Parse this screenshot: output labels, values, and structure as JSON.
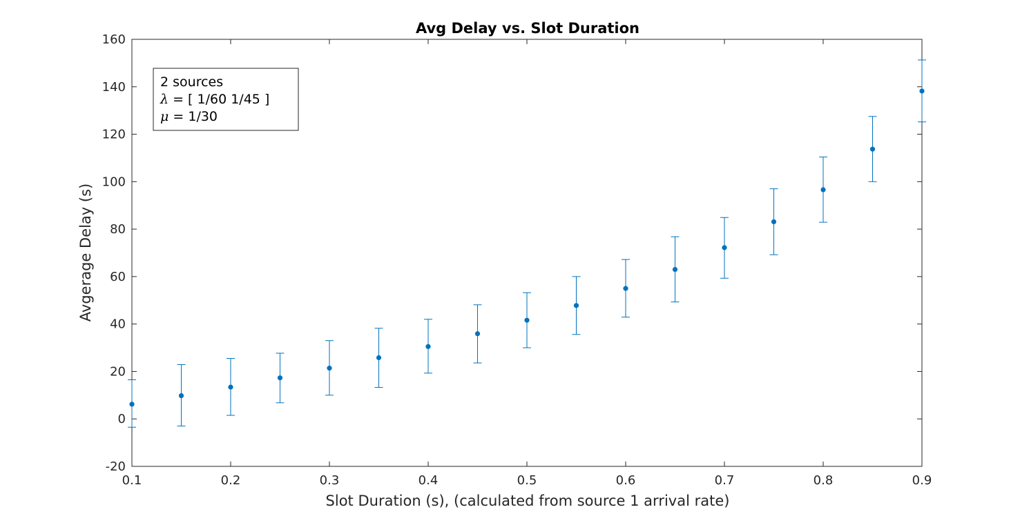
{
  "chart_data": {
    "type": "scatter",
    "title": "Avg Delay vs. Slot Duration",
    "xlabel": "Slot Duration (s), (calculated from source 1 arrival rate)",
    "ylabel": "Avgerage Delay (s)",
    "xlim": [
      0.1,
      0.9
    ],
    "ylim": [
      -20,
      160
    ],
    "xticks": [
      0.1,
      0.2,
      0.3,
      0.4,
      0.5,
      0.6,
      0.7,
      0.8,
      0.9
    ],
    "xtick_labels": [
      "0.1",
      "0.2",
      "0.3",
      "0.4",
      "0.5",
      "0.6",
      "0.7",
      "0.8",
      "0.9"
    ],
    "yticks": [
      -20,
      0,
      20,
      40,
      60,
      80,
      100,
      120,
      140,
      160
    ],
    "ytick_labels": [
      "-20",
      "0",
      "20",
      "40",
      "60",
      "80",
      "100",
      "120",
      "140",
      "160"
    ],
    "grid": false,
    "error_bars": true,
    "color": "#0072BD",
    "series": [
      {
        "x": [
          0.1,
          0.15,
          0.2,
          0.25,
          0.3,
          0.35,
          0.4,
          0.45,
          0.5,
          0.55,
          0.6,
          0.65,
          0.7,
          0.75,
          0.8,
          0.85,
          0.9
        ],
        "y": [
          6.2,
          9.8,
          13.4,
          17.3,
          21.4,
          25.8,
          30.5,
          35.9,
          41.6,
          47.8,
          55.0,
          63.0,
          72.2,
          83.1,
          96.6,
          113.7,
          138.2
        ],
        "lower": [
          -3.5,
          -3.0,
          1.5,
          6.8,
          10.0,
          13.3,
          19.3,
          23.6,
          30.0,
          35.6,
          42.9,
          49.3,
          59.3,
          69.2,
          82.9,
          100.0,
          125.2
        ],
        "upper": [
          16.5,
          22.9,
          25.5,
          27.7,
          33.0,
          38.2,
          42.0,
          48.1,
          53.2,
          60.0,
          67.2,
          76.8,
          84.9,
          97.0,
          110.4,
          127.5,
          151.3
        ]
      }
    ],
    "legend": {
      "position": "top-left",
      "lines": [
        {
          "symbol": "",
          "text": "2 sources"
        },
        {
          "symbol": "λ",
          "text": " = [ 1/60 1/45 ]"
        },
        {
          "symbol": "μ",
          "text": " = 1/30"
        }
      ]
    }
  }
}
